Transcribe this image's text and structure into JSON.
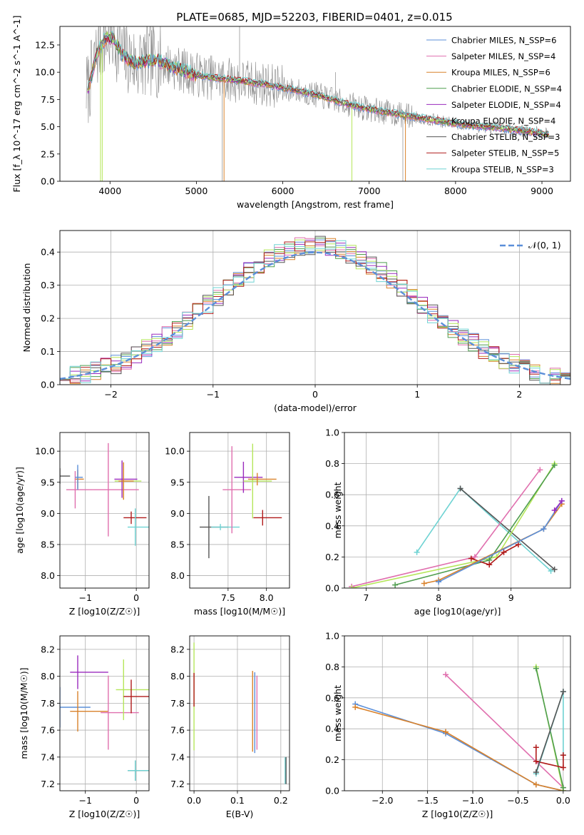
{
  "figure_title": "PLATE=0685, MJD=52203, FIBERID=0401, z=0.015",
  "colors": {
    "chabrier_miles": "#5b8fd9",
    "salpeter_miles": "#e06fae",
    "kroupa_miles": "#d9822b",
    "chabrier_elodie": "#4f9e4f",
    "salpeter_elodie": "#9a2bbd",
    "kroupa_elodie": "#b5e65a",
    "chabrier_stelib": "#555555",
    "salpeter_stelib": "#b01a1a",
    "kroupa_stelib": "#6fd3d3",
    "data": "#888888",
    "normal": "#5b8fd9",
    "grid": "#b0b0b0"
  },
  "chart_data": [
    {
      "id": "spectrum",
      "type": "line",
      "title": "PLATE=0685, MJD=52203, FIBERID=0401, z=0.015",
      "xlabel": "wavelength [Angstrom, rest frame]",
      "ylabel": "Flux [f_λ 10^-17 erg cm^-2 s^-1 A^-1]",
      "xlim": [
        3420,
        9330
      ],
      "ylim": [
        0,
        14.2
      ],
      "xticks": [
        "4000",
        "5000",
        "6000",
        "7000",
        "8000",
        "9000"
      ],
      "yticks": [
        "0.0",
        "2.5",
        "5.0",
        "7.5",
        "10.0",
        "12.5"
      ],
      "grid": false,
      "legend_position": "top-right",
      "model_continuum": {
        "x": [
          3750,
          3850,
          3950,
          4050,
          4150,
          4300,
          4500,
          4700,
          4900,
          5100,
          5300,
          5500,
          5800,
          6100,
          6400,
          6700,
          7000,
          7300,
          7600,
          7900,
          8200,
          8500,
          8800,
          9100
        ],
        "y": [
          8.5,
          11.8,
          13.2,
          13.0,
          11.5,
          10.8,
          11.2,
          10.6,
          10.0,
          9.6,
          9.4,
          9.2,
          8.9,
          8.4,
          7.9,
          7.2,
          6.6,
          6.2,
          5.8,
          5.4,
          5.1,
          4.9,
          4.6,
          4.3
        ]
      },
      "series": [
        {
          "name": "Chabrier MILES, N_SSP=6",
          "color_key": "chabrier_miles"
        },
        {
          "name": "Salpeter MILES, N_SSP=4",
          "color_key": "salpeter_miles"
        },
        {
          "name": "Kroupa MILES, N_SSP=6",
          "color_key": "kroupa_miles"
        },
        {
          "name": "Chabrier ELODIE, N_SSP=4",
          "color_key": "chabrier_elodie"
        },
        {
          "name": "Salpeter ELODIE, N_SSP=4",
          "color_key": "salpeter_elodie"
        },
        {
          "name": "Kroupa ELODIE, N_SSP=4",
          "color_key": "kroupa_elodie"
        },
        {
          "name": "Chabrier STELIB, N_SSP=3",
          "color_key": "chabrier_stelib"
        },
        {
          "name": "Salpeter STELIB, N_SSP=5",
          "color_key": "salpeter_stelib"
        },
        {
          "name": "Kroupa STELIB, N_SSP=3",
          "color_key": "kroupa_stelib"
        }
      ]
    },
    {
      "id": "residuals",
      "type": "area",
      "xlabel": "(data-model)/error",
      "ylabel": "Normed distribution",
      "xlim": [
        -2.5,
        2.5
      ],
      "ylim": [
        0,
        0.465
      ],
      "xticks": [
        "−2",
        "−1",
        "0",
        "1",
        "2"
      ],
      "yticks": [
        "0.0",
        "0.1",
        "0.2",
        "0.3",
        "0.4"
      ],
      "grid": true,
      "legend_position": "top-right",
      "legend": [
        "𝒩(0, 1)"
      ],
      "bin_width": 0.1
    },
    {
      "id": "age_vs_Z",
      "type": "scatter",
      "xlabel": "Z [log10(Z/Z☉)]",
      "ylabel": "age  [log10(age/yr)]",
      "xlim": [
        -1.5,
        0.25
      ],
      "ylim": [
        7.8,
        10.3
      ],
      "xticks": [
        "−1",
        "0"
      ],
      "yticks": [
        "8.0",
        "8.5",
        "9.0",
        "9.5",
        "10.0"
      ],
      "grid": true
    },
    {
      "id": "age_vs_mass",
      "type": "scatter",
      "xlabel": "mass [log10(M/M☉)]",
      "ylabel": "",
      "xlim": [
        7.0,
        8.3
      ],
      "ylim": [
        7.8,
        10.3
      ],
      "xticks": [
        "7.5",
        "8.0"
      ],
      "yticks": [
        "8.0",
        "8.5",
        "9.0",
        "9.5",
        "10.0"
      ],
      "grid": true
    },
    {
      "id": "weight_vs_age",
      "type": "line",
      "xlabel": "age  [log10(age/yr)]",
      "ylabel": "mass weight",
      "xlim": [
        6.7,
        9.82
      ],
      "ylim": [
        0,
        1.0
      ],
      "xticks": [
        "7",
        "8",
        "9"
      ],
      "yticks": [
        "0.0",
        "0.2",
        "0.4",
        "0.6",
        "0.8",
        "1.0"
      ],
      "grid": true
    },
    {
      "id": "mass_vs_Z",
      "type": "scatter",
      "xlabel": "Z [log10(Z/Z☉)]",
      "ylabel": "mass [log10(M/M☉)]",
      "xlim": [
        -1.5,
        0.25
      ],
      "ylim": [
        7.15,
        8.3
      ],
      "xticks": [
        "−1",
        "0"
      ],
      "yticks": [
        "7.2",
        "7.4",
        "7.6",
        "7.8",
        "8.0",
        "8.2"
      ],
      "grid": true
    },
    {
      "id": "mass_vs_ebv",
      "type": "scatter",
      "xlabel": "E(B-V)",
      "ylabel": "",
      "xlim": [
        -0.01,
        0.22
      ],
      "ylim": [
        7.15,
        8.3
      ],
      "xticks": [
        "0.0",
        "0.1",
        "0.2"
      ],
      "yticks": [
        "7.2",
        "7.4",
        "7.6",
        "7.8",
        "8.0",
        "8.2"
      ],
      "grid": true
    },
    {
      "id": "weight_vs_Z",
      "type": "line",
      "xlabel": "Z [log10(Z/Z☉)]",
      "ylabel": "mass weight",
      "xlim": [
        -2.42,
        0.08
      ],
      "ylim": [
        0,
        1.0
      ],
      "xticks": [
        "−2.0",
        "−1.5",
        "−1.0",
        "−0.5",
        "0.0"
      ],
      "yticks": [
        "0.0",
        "0.2",
        "0.4",
        "0.6",
        "0.8",
        "1.0"
      ],
      "grid": true
    }
  ]
}
